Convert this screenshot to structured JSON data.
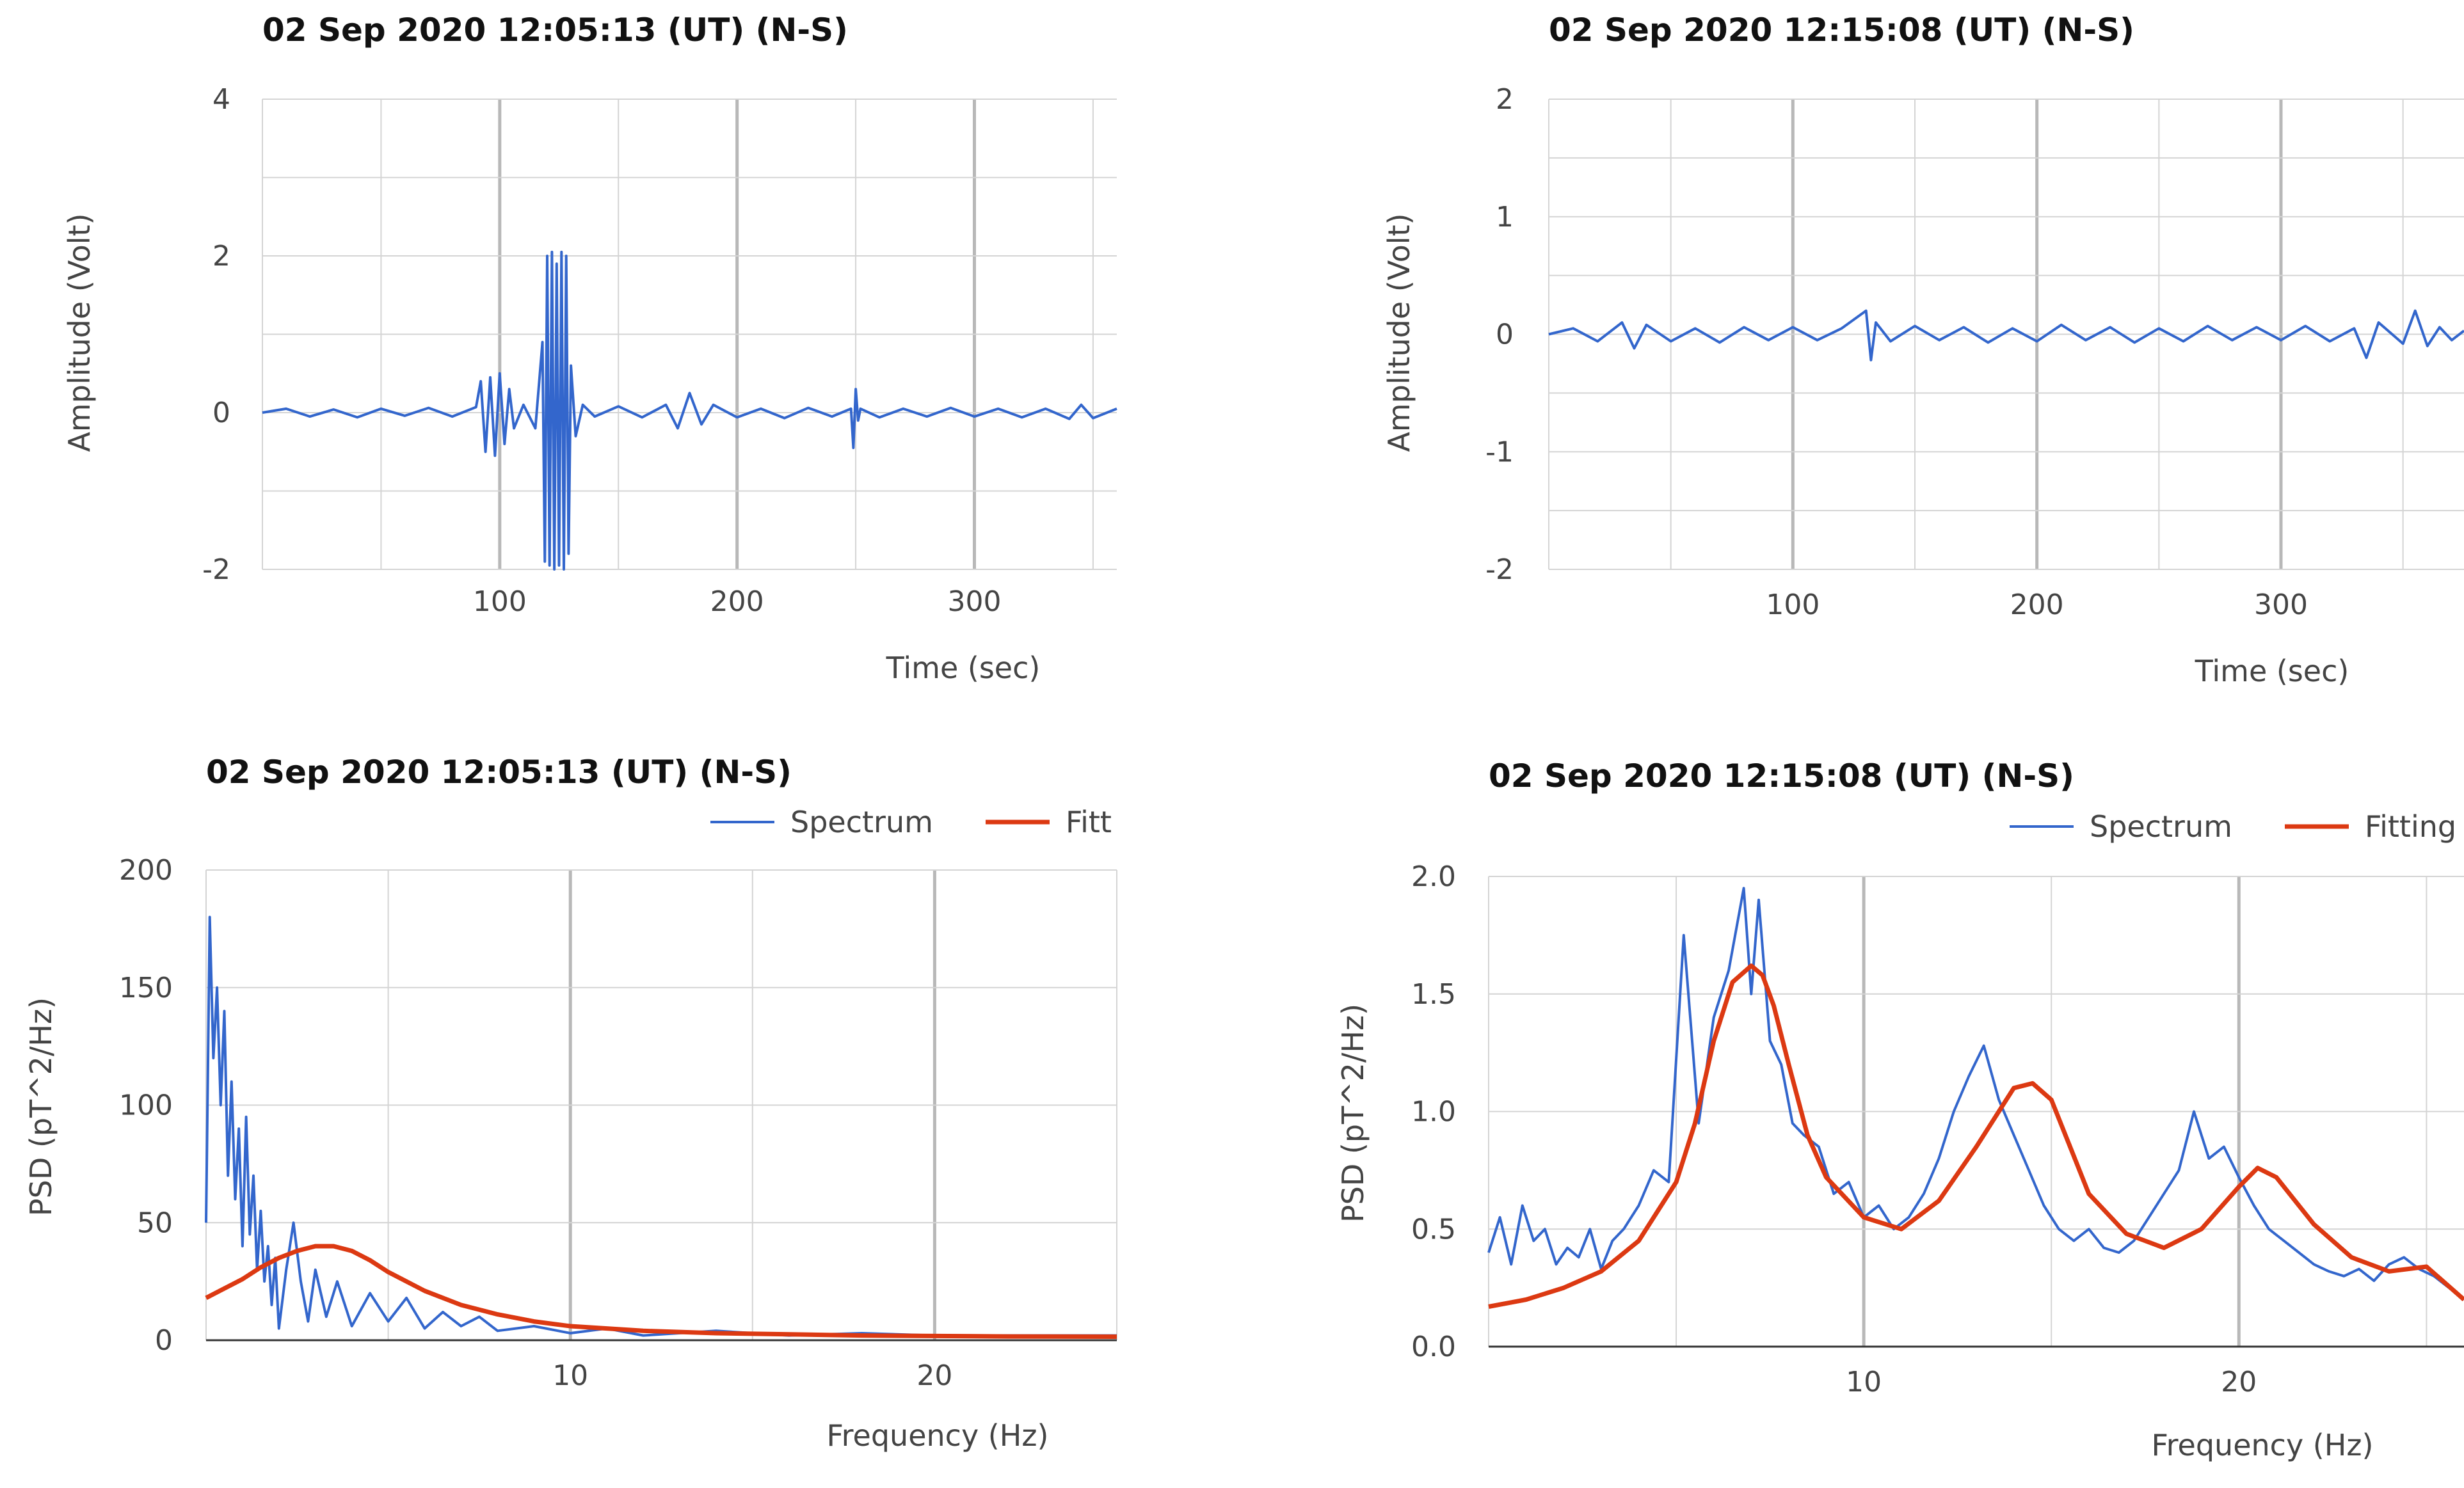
{
  "chart_data": [
    {
      "type": "line",
      "title": "02 Sep 2020  12:05:13 (UT) (N-S)",
      "xlabel": "Time (sec)",
      "ylabel": "Amplitude (Volt)",
      "xlim": [
        0,
        360
      ],
      "ylim": [
        -2,
        4
      ],
      "xticks": [
        100,
        200,
        300
      ],
      "yticks": [
        -2,
        0,
        2,
        4
      ],
      "grid": true,
      "series": [
        {
          "name": "",
          "color": "#3366cc",
          "x": [
            0,
            10,
            20,
            30,
            40,
            50,
            60,
            70,
            80,
            90,
            92,
            94,
            96,
            98,
            100,
            102,
            104,
            106,
            110,
            115,
            118,
            119,
            120,
            121,
            122,
            123,
            124,
            125,
            126,
            127,
            128,
            129,
            130,
            132,
            135,
            140,
            150,
            160,
            170,
            175,
            180,
            185,
            190,
            200,
            210,
            220,
            230,
            240,
            248,
            249,
            250,
            251,
            252,
            260,
            270,
            280,
            290,
            300,
            310,
            320,
            330,
            340,
            345,
            350,
            360
          ],
          "y": [
            0.0,
            0.05,
            -0.05,
            0.04,
            -0.06,
            0.05,
            -0.04,
            0.06,
            -0.05,
            0.07,
            0.4,
            -0.5,
            0.45,
            -0.55,
            0.5,
            -0.4,
            0.3,
            -0.2,
            0.1,
            -0.2,
            0.9,
            -1.9,
            2.0,
            -1.95,
            2.05,
            -2.0,
            1.9,
            -1.95,
            2.05,
            -2.0,
            2.0,
            -1.8,
            0.6,
            -0.3,
            0.1,
            -0.05,
            0.08,
            -0.06,
            0.1,
            -0.2,
            0.25,
            -0.15,
            0.1,
            -0.06,
            0.05,
            -0.07,
            0.06,
            -0.05,
            0.05,
            -0.45,
            0.3,
            -0.1,
            0.05,
            -0.06,
            0.05,
            -0.05,
            0.06,
            -0.05,
            0.05,
            -0.06,
            0.05,
            -0.08,
            0.1,
            -0.07,
            0.05
          ]
        }
      ]
    },
    {
      "type": "line",
      "title": "02 Sep 2020  12:15:08 (UT) (N-S)",
      "xlabel": "Time (sec)",
      "ylabel": "Amplitude (Volt)",
      "xlim": [
        0,
        375
      ],
      "ylim": [
        -2,
        2
      ],
      "xticks": [
        100,
        200,
        300
      ],
      "yticks": [
        -2,
        -1,
        0,
        1,
        2
      ],
      "grid": true,
      "series": [
        {
          "name": "",
          "color": "#3366cc",
          "x": [
            0,
            10,
            20,
            30,
            35,
            40,
            50,
            60,
            70,
            80,
            90,
            100,
            110,
            120,
            130,
            132,
            134,
            140,
            150,
            160,
            170,
            180,
            190,
            200,
            210,
            220,
            230,
            240,
            250,
            260,
            270,
            280,
            290,
            300,
            310,
            320,
            330,
            335,
            340,
            350,
            355,
            360,
            365,
            370,
            375
          ],
          "y": [
            0.0,
            0.05,
            -0.06,
            0.1,
            -0.12,
            0.08,
            -0.06,
            0.05,
            -0.07,
            0.06,
            -0.05,
            0.06,
            -0.05,
            0.05,
            0.2,
            -0.22,
            0.1,
            -0.06,
            0.07,
            -0.05,
            0.06,
            -0.07,
            0.05,
            -0.06,
            0.08,
            -0.05,
            0.06,
            -0.07,
            0.05,
            -0.06,
            0.07,
            -0.05,
            0.06,
            -0.05,
            0.07,
            -0.06,
            0.05,
            -0.2,
            0.1,
            -0.08,
            0.2,
            -0.1,
            0.06,
            -0.05,
            0.03
          ]
        }
      ]
    },
    {
      "type": "line",
      "title": "02 Sep 2020  12:05:13 (UT) (N-S)",
      "xlabel": "Frequency (Hz)",
      "ylabel": "PSD (pT^2/Hz)",
      "xlim": [
        0,
        25
      ],
      "ylim": [
        0,
        200
      ],
      "xticks": [
        10,
        20
      ],
      "yticks": [
        0,
        50,
        100,
        150,
        200
      ],
      "grid": true,
      "legend": "top-right",
      "legend_entries": [
        "Spectrum",
        "Fitt"
      ],
      "series": [
        {
          "name": "Spectrum",
          "color": "#3366cc",
          "x": [
            0.0,
            0.1,
            0.2,
            0.3,
            0.4,
            0.5,
            0.6,
            0.7,
            0.8,
            0.9,
            1.0,
            1.1,
            1.2,
            1.3,
            1.4,
            1.5,
            1.6,
            1.7,
            1.8,
            1.9,
            2.0,
            2.2,
            2.4,
            2.6,
            2.8,
            3.0,
            3.3,
            3.6,
            4.0,
            4.5,
            5.0,
            5.5,
            6.0,
            6.5,
            7.0,
            7.5,
            8.0,
            9.0,
            10.0,
            11.0,
            12.0,
            14.0,
            16.0,
            18.0,
            20.0,
            22.0,
            25.0
          ],
          "y": [
            50,
            180,
            120,
            150,
            100,
            140,
            70,
            110,
            60,
            90,
            40,
            95,
            45,
            70,
            30,
            55,
            25,
            40,
            15,
            35,
            5,
            30,
            50,
            25,
            8,
            30,
            10,
            25,
            6,
            20,
            8,
            18,
            5,
            12,
            6,
            10,
            4,
            6,
            3,
            5,
            2,
            4,
            2,
            3,
            2,
            2,
            2
          ]
        },
        {
          "name": "Fitt",
          "color": "#dc3912",
          "x": [
            0,
            0.5,
            1,
            1.5,
            2,
            2.5,
            3,
            3.5,
            4,
            4.5,
            5,
            5.5,
            6,
            7,
            8,
            9,
            10,
            12,
            14,
            16,
            18,
            20,
            22,
            25
          ],
          "y": [
            18,
            22,
            26,
            31,
            35,
            38,
            40,
            40,
            38,
            34,
            29,
            25,
            21,
            15,
            11,
            8,
            6,
            4,
            3,
            2.5,
            2,
            1.8,
            1.6,
            1.5
          ]
        }
      ]
    },
    {
      "type": "line",
      "title": "02 Sep 2020  12:15:08 (UT) (N-S)",
      "xlabel": "Frequency (Hz)",
      "ylabel": "PSD (pT^2/Hz)",
      "xlim": [
        0,
        26
      ],
      "ylim": [
        0,
        2.0
      ],
      "xticks": [
        10,
        20
      ],
      "yticks": [
        0.0,
        0.5,
        1.0,
        1.5,
        2.0
      ],
      "grid": true,
      "legend": "top-right",
      "legend_entries": [
        "Spectrum",
        "Fitting"
      ],
      "series": [
        {
          "name": "Spectrum",
          "color": "#3366cc",
          "x": [
            0,
            0.3,
            0.6,
            0.9,
            1.2,
            1.5,
            1.8,
            2.1,
            2.4,
            2.7,
            3,
            3.3,
            3.6,
            4,
            4.4,
            4.8,
            5.2,
            5.6,
            6,
            6.4,
            6.8,
            7,
            7.2,
            7.5,
            7.8,
            8.1,
            8.4,
            8.8,
            9.2,
            9.6,
            10,
            10.4,
            10.8,
            11.2,
            11.6,
            12,
            12.4,
            12.8,
            13.2,
            13.6,
            14,
            14.4,
            14.8,
            15.2,
            15.6,
            16,
            16.4,
            16.8,
            17.2,
            17.6,
            18,
            18.4,
            18.8,
            19.2,
            19.6,
            20,
            20.4,
            20.8,
            21.2,
            21.6,
            22,
            22.4,
            22.8,
            23.2,
            23.6,
            24,
            24.4,
            24.8,
            25.2,
            25.6,
            26
          ],
          "y": [
            0.4,
            0.55,
            0.35,
            0.6,
            0.45,
            0.5,
            0.35,
            0.42,
            0.38,
            0.5,
            0.33,
            0.45,
            0.5,
            0.6,
            0.75,
            0.7,
            1.75,
            0.95,
            1.4,
            1.6,
            1.95,
            1.5,
            1.9,
            1.3,
            1.2,
            0.95,
            0.9,
            0.85,
            0.65,
            0.7,
            0.55,
            0.6,
            0.5,
            0.55,
            0.65,
            0.8,
            1.0,
            1.15,
            1.28,
            1.05,
            0.9,
            0.75,
            0.6,
            0.5,
            0.45,
            0.5,
            0.42,
            0.4,
            0.45,
            0.55,
            0.65,
            0.75,
            1.0,
            0.8,
            0.85,
            0.72,
            0.6,
            0.5,
            0.45,
            0.4,
            0.35,
            0.32,
            0.3,
            0.33,
            0.28,
            0.35,
            0.38,
            0.33,
            0.3,
            0.25,
            0.2
          ]
        },
        {
          "name": "Fitting",
          "color": "#dc3912",
          "x": [
            0,
            1,
            2,
            3,
            4,
            5,
            5.5,
            6,
            6.5,
            7,
            7.3,
            7.6,
            8,
            8.5,
            9,
            10,
            11,
            12,
            13,
            14,
            14.5,
            15,
            15.5,
            16,
            17,
            18,
            19,
            20,
            20.5,
            21,
            22,
            23,
            24,
            25,
            26
          ],
          "y": [
            0.17,
            0.2,
            0.25,
            0.32,
            0.45,
            0.7,
            0.95,
            1.3,
            1.55,
            1.62,
            1.58,
            1.45,
            1.2,
            0.9,
            0.72,
            0.55,
            0.5,
            0.62,
            0.85,
            1.1,
            1.12,
            1.05,
            0.85,
            0.65,
            0.48,
            0.42,
            0.5,
            0.68,
            0.76,
            0.72,
            0.52,
            0.38,
            0.32,
            0.34,
            0.2
          ]
        }
      ]
    }
  ]
}
